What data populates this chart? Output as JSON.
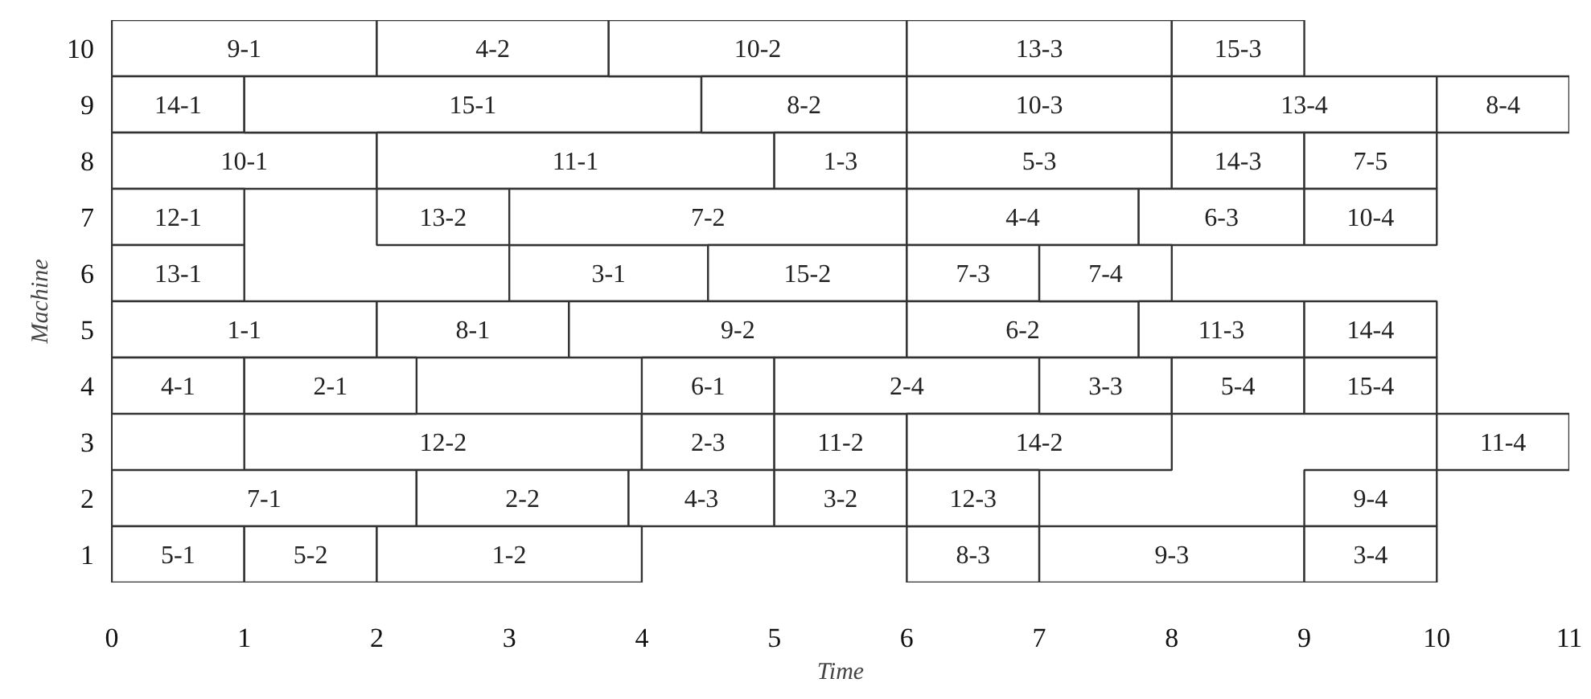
{
  "chart_data": {
    "type": "bar",
    "orientation": "horizontal",
    "xlabel": "Time",
    "ylabel": "Machine",
    "categories": [
      "10",
      "9",
      "8",
      "7",
      "6",
      "5",
      "4",
      "3",
      "2",
      "1"
    ],
    "xlim": [
      0,
      11
    ],
    "xticks": [
      0,
      1,
      2,
      3,
      4,
      5,
      6,
      7,
      8,
      9,
      10,
      11
    ],
    "grid": false,
    "series": [
      {
        "color": "#ffffff",
        "base": [
          0,
          0,
          0,
          0,
          0,
          0,
          0,
          1,
          0,
          0
        ],
        "values": [
          2,
          1,
          2,
          1,
          1,
          2,
          1,
          3,
          2.3,
          1
        ],
        "value_labels": [
          "9-1",
          "14-1",
          "10-1",
          "12-1",
          "13-1",
          "1-1",
          "4-1",
          "12-2",
          "7-1",
          "5-1"
        ]
      },
      {
        "color": "#ffffff",
        "base": [
          2,
          1,
          2,
          2,
          3,
          2,
          1,
          4,
          2.3,
          1
        ],
        "values": [
          1.75,
          3.45,
          3,
          1,
          1.5,
          1.45,
          1.3,
          1,
          1.6,
          1
        ],
        "value_labels": [
          "4-2",
          "15-1",
          "11-1",
          "13-2",
          "3-1",
          "8-1",
          "2-1",
          "2-3",
          "2-2",
          "5-2"
        ]
      },
      {
        "color": "#ffffff",
        "base": [
          3.75,
          4.45,
          5,
          3,
          4.5,
          3.45,
          4,
          5,
          3.9,
          2
        ],
        "values": [
          2.25,
          1.55,
          1,
          3,
          1.5,
          2.55,
          1,
          1,
          1.1,
          2
        ],
        "value_labels": [
          "10-2",
          "8-2",
          "1-3",
          "7-2",
          "15-2",
          "9-2",
          "6-1",
          "11-2",
          "4-3",
          "1-2"
        ]
      },
      {
        "color": "#ffffff",
        "base": [
          6,
          6,
          6,
          6,
          6,
          6,
          5,
          6,
          5,
          6
        ],
        "values": [
          2,
          2,
          2,
          1.75,
          1,
          1.75,
          2,
          2,
          1,
          1
        ],
        "value_labels": [
          "13-3",
          "10-3",
          "5-3",
          "4-4",
          "7-3",
          "6-2",
          "2-4",
          "14-2",
          "3-2",
          "8-3"
        ]
      },
      {
        "color": "#ffffff",
        "base": [
          8,
          8,
          8,
          7.75,
          7,
          7.75,
          7,
          10,
          6,
          7
        ],
        "values": [
          1,
          2,
          1,
          1.25,
          1,
          1.25,
          1,
          1,
          1,
          2
        ],
        "value_labels": [
          "15-3",
          "13-4",
          "14-3",
          "6-3",
          "7-4",
          "11-3",
          "3-3",
          "11-4",
          "12-3",
          "9-3"
        ]
      },
      {
        "color": "#ffffff",
        "base": [
          null,
          10,
          9,
          9,
          null,
          9,
          8,
          null,
          9,
          9
        ],
        "values": [
          null,
          1,
          1,
          1,
          null,
          1,
          1,
          null,
          1,
          1
        ],
        "value_labels": [
          null,
          "8-4",
          "7-5",
          "10-4",
          null,
          "14-4",
          "5-4",
          null,
          "9-4",
          "3-4"
        ]
      },
      {
        "color": "#ffffff",
        "base": [
          null,
          null,
          null,
          null,
          null,
          null,
          9,
          null,
          null,
          null
        ],
        "values": [
          null,
          null,
          null,
          null,
          null,
          null,
          1,
          null,
          null,
          null
        ],
        "value_labels": [
          null,
          null,
          null,
          null,
          null,
          null,
          "15-4",
          null,
          null,
          null
        ]
      }
    ]
  }
}
